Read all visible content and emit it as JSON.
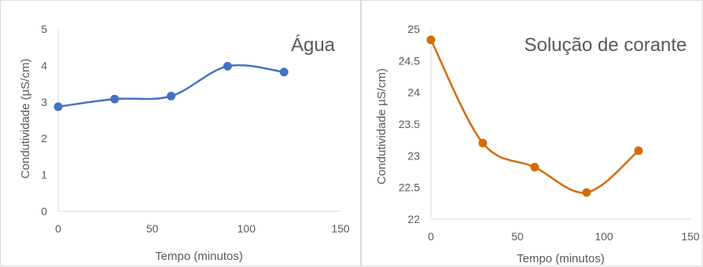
{
  "chart_data": [
    {
      "type": "line",
      "title": "Água",
      "xlabel": "Tempo (minutos)",
      "ylabel": "Condutividade (µS/cm)",
      "xlim": [
        0,
        150
      ],
      "ylim": [
        0,
        5
      ],
      "x_ticks": [
        "0",
        "50",
        "100",
        "150"
      ],
      "y_ticks": [
        "0",
        "1",
        "2",
        "3",
        "4",
        "5"
      ],
      "grid": false,
      "series": [
        {
          "x": [
            0,
            30,
            60,
            90,
            120
          ],
          "values": [
            2.87,
            3.08,
            3.16,
            3.98,
            3.82
          ],
          "color": "#4472c4",
          "smooth": true
        }
      ]
    },
    {
      "type": "line",
      "title": "Solução de corante",
      "xlabel": "Tempo (minutos)",
      "ylabel": "Condutividade µS/cm)",
      "xlim": [
        0,
        150
      ],
      "ylim": [
        22,
        25
      ],
      "x_ticks": [
        "0",
        "50",
        "100",
        "150"
      ],
      "y_ticks": [
        "22",
        "22.5",
        "23",
        "23.5",
        "24",
        "24.5",
        "25"
      ],
      "grid": false,
      "series": [
        {
          "x": [
            0,
            30,
            60,
            90,
            120
          ],
          "values": [
            24.83,
            23.2,
            22.82,
            22.42,
            23.08
          ],
          "color": "#d46b08",
          "smooth": true
        }
      ]
    }
  ]
}
